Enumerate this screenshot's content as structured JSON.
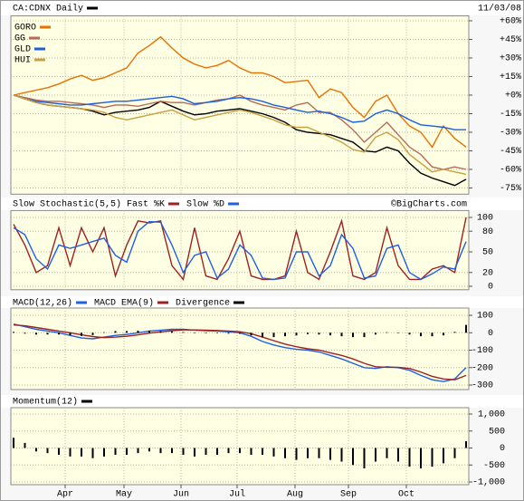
{
  "chart_data": [
    {
      "type": "line",
      "date": "11/03/08",
      "legend": "upper left",
      "grid": true,
      "xlim": [
        0,
        40
      ],
      "ylim": [
        -80,
        64
      ],
      "yticks": [
        {
          "value": 60,
          "label": "+60%"
        },
        {
          "value": 45,
          "label": "+45%"
        },
        {
          "value": 30,
          "label": "+30%"
        },
        {
          "value": 15,
          "label": "+15%"
        },
        {
          "value": 0,
          "label": "+0%"
        },
        {
          "value": -15,
          "label": "-15%"
        },
        {
          "value": -30,
          "label": "-30%"
        },
        {
          "value": -45,
          "label": "-45%"
        },
        {
          "value": -60,
          "label": "-60%"
        },
        {
          "value": -75,
          "label": "-75%"
        }
      ],
      "series": [
        {
          "name": "CA:CDNX Daily",
          "color": "#000000",
          "values": [
            0,
            -3,
            -6,
            -8,
            -9,
            -10,
            -11,
            -13,
            -16,
            -14,
            -13,
            -12,
            -10,
            -5,
            -9,
            -13,
            -16,
            -15,
            -13,
            -12,
            -11,
            -13,
            -15,
            -18,
            -22,
            -28,
            -30,
            -31,
            -32,
            -35,
            -38,
            -45,
            -46,
            -42,
            -45,
            -55,
            -63,
            -67,
            -70,
            -73,
            -68
          ]
        },
        {
          "name": "GORO",
          "color": "#e87000",
          "values": [
            0,
            2,
            4,
            6,
            9,
            13,
            16,
            12,
            14,
            18,
            22,
            34,
            40,
            47,
            38,
            30,
            25,
            22,
            24,
            28,
            22,
            18,
            18,
            15,
            10,
            11,
            12,
            -2,
            5,
            2,
            -10,
            -18,
            -5,
            0,
            -15,
            -25,
            -30,
            -42,
            -25,
            -35,
            -42
          ]
        },
        {
          "name": "GG",
          "color": "#b86a5a",
          "values": [
            0,
            -2,
            -4,
            -5,
            -5,
            -6,
            -7,
            -8,
            -10,
            -8,
            -8,
            -9,
            -7,
            -5,
            -6,
            -6,
            -8,
            -6,
            -4,
            -3,
            0,
            -5,
            -8,
            -10,
            -12,
            -8,
            -6,
            -14,
            -14,
            -20,
            -28,
            -38,
            -30,
            -22,
            -32,
            -42,
            -48,
            -58,
            -60,
            -58,
            -60
          ]
        },
        {
          "name": "GLD",
          "color": "#1a5fdc",
          "values": [
            0,
            -3,
            -5,
            -6,
            -7,
            -8,
            -8,
            -7,
            -6,
            -5,
            -5,
            -4,
            -3,
            -2,
            -1,
            -3,
            -7,
            -6,
            -5,
            -3,
            -2,
            -3,
            -5,
            -8,
            -10,
            -12,
            -14,
            -13,
            -15,
            -18,
            -22,
            -21,
            -15,
            -12,
            -15,
            -20,
            -24,
            -25,
            -26,
            -28,
            -28
          ]
        },
        {
          "name": "HUI",
          "color": "#c8a040",
          "values": [
            0,
            -3,
            -6,
            -8,
            -9,
            -10,
            -11,
            -12,
            -14,
            -18,
            -20,
            -18,
            -16,
            -14,
            -12,
            -16,
            -20,
            -18,
            -16,
            -14,
            -12,
            -14,
            -17,
            -20,
            -24,
            -26,
            -26,
            -30,
            -34,
            -38,
            -44,
            -46,
            -34,
            -30,
            -36,
            -48,
            -55,
            -62,
            -60,
            -62,
            -64
          ]
        }
      ]
    },
    {
      "type": "line",
      "source": "©BigCharts.com",
      "grid": true,
      "xlim": [
        0,
        40
      ],
      "ylim": [
        -5,
        110
      ],
      "yticks": [
        100,
        80,
        50,
        20,
        0
      ],
      "series": [
        {
          "name": "Slow Stochastic(5,5) Fast %K",
          "color": "#a02020",
          "values": [
            90,
            60,
            20,
            30,
            85,
            30,
            85,
            50,
            85,
            15,
            60,
            95,
            92,
            95,
            30,
            10,
            85,
            15,
            10,
            40,
            80,
            15,
            10,
            10,
            15,
            80,
            20,
            10,
            50,
            95,
            15,
            10,
            20,
            85,
            30,
            10,
            10,
            25,
            30,
            20,
            100
          ]
        },
        {
          "name": "Slow %D",
          "color": "#2060e0",
          "values": [
            85,
            75,
            40,
            25,
            60,
            55,
            60,
            65,
            70,
            45,
            35,
            80,
            94,
            93,
            60,
            20,
            45,
            50,
            12,
            25,
            60,
            45,
            12,
            10,
            12,
            50,
            50,
            15,
            30,
            75,
            55,
            12,
            15,
            55,
            60,
            20,
            10,
            18,
            28,
            25,
            65
          ]
        }
      ]
    },
    {
      "type": "line",
      "grid": true,
      "xlim": [
        0,
        40
      ],
      "ylim": [
        -326,
        142
      ],
      "yticks": [
        100,
        0,
        -100,
        -200,
        -300
      ],
      "series": [
        {
          "name": "MACD(12,26)",
          "color": "#2060e0",
          "values": [
            50,
            35,
            20,
            10,
            0,
            -15,
            -30,
            -35,
            -25,
            -15,
            -10,
            0,
            10,
            15,
            20,
            20,
            15,
            12,
            10,
            5,
            0,
            -20,
            -50,
            -70,
            -85,
            -95,
            -100,
            -110,
            -130,
            -150,
            -175,
            -200,
            -205,
            -195,
            -200,
            -215,
            -245,
            -270,
            -280,
            -265,
            -200
          ]
        },
        {
          "name": "MACD EMA(9)",
          "color": "#a02020",
          "values": [
            45,
            40,
            30,
            20,
            10,
            0,
            -12,
            -22,
            -28,
            -25,
            -20,
            -12,
            -2,
            5,
            12,
            16,
            16,
            15,
            13,
            10,
            6,
            -5,
            -25,
            -45,
            -65,
            -80,
            -92,
            -100,
            -115,
            -130,
            -150,
            -175,
            -195,
            -198,
            -198,
            -205,
            -225,
            -250,
            -265,
            -270,
            -245
          ]
        },
        {
          "name": "Divergence",
          "color": "#000000",
          "type": "bar",
          "values": [
            5,
            -5,
            -10,
            -10,
            -10,
            -15,
            -18,
            -13,
            3,
            10,
            10,
            12,
            12,
            10,
            8,
            4,
            -1,
            -3,
            -3,
            -5,
            -6,
            -15,
            -25,
            -25,
            -20,
            -15,
            -8,
            -10,
            -15,
            -20,
            -25,
            -25,
            -10,
            3,
            -2,
            -10,
            -20,
            -20,
            -15,
            5,
            45
          ]
        }
      ]
    },
    {
      "type": "bar",
      "grid": true,
      "xlim": [
        0,
        40
      ],
      "ylim": [
        -1080,
        1187
      ],
      "yticks": [
        {
          "value": 1000,
          "label": "1,000"
        },
        500,
        0,
        -500,
        {
          "value": -1000,
          "label": "-1,000"
        }
      ],
      "xticks": [
        {
          "value": 4.56,
          "label": "Apr"
        },
        {
          "value": 9.76,
          "label": "May"
        },
        {
          "value": 14.8,
          "label": "Jun"
        },
        {
          "value": 19.76,
          "label": "Jul"
        },
        {
          "value": 24.88,
          "label": "Aug"
        },
        {
          "value": 29.6,
          "label": "Sep"
        },
        {
          "value": 34.72,
          "label": "Oct"
        }
      ],
      "series": [
        {
          "name": "Momentum(12)",
          "color": "#000000",
          "values": [
            300,
            150,
            -100,
            -150,
            -200,
            -250,
            -250,
            -300,
            -250,
            -200,
            -200,
            -150,
            -100,
            -150,
            -150,
            -200,
            -250,
            -200,
            -200,
            -150,
            -150,
            -200,
            -200,
            -250,
            -300,
            -350,
            -300,
            -300,
            -350,
            -400,
            -500,
            -600,
            -400,
            -300,
            -400,
            -550,
            -600,
            -550,
            -450,
            -300,
            200
          ]
        }
      ]
    }
  ]
}
